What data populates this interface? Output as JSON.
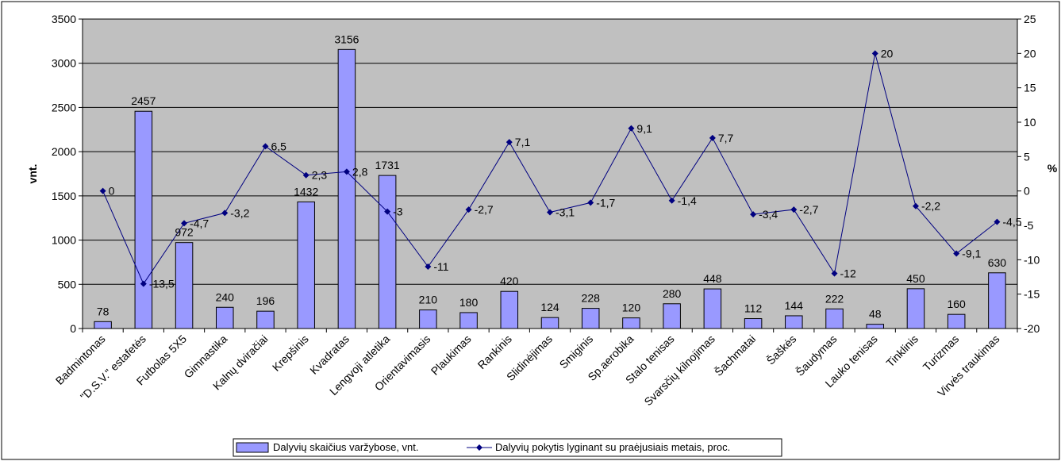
{
  "chart_data": {
    "type": "bar",
    "categories": [
      "Badmintonas",
      "\"D.S.V.\" estafetės",
      "Futbolas 5X5",
      "Gimnastika",
      "Kalnų dviračiai",
      "Krepšinis",
      "Kvadratas",
      "Lengvoji atletika",
      "Orientavimasis",
      "Plaukimas",
      "Rankinis",
      "Slidinėjimas",
      "Smiginis",
      "Sp.aerobika",
      "Stalo tenisas",
      "Svarsčių kilnojimas",
      "Šachmatai",
      "Šaškės",
      "Šaudymas",
      "Lauko tenisas",
      "Tinklinis",
      "Turizmas",
      "Virvės traukimas"
    ],
    "series": [
      {
        "name": "Dalyvių skaičius varžybose, vnt.",
        "type": "bar",
        "axis": "left",
        "color": "#9999ff",
        "values": [
          78,
          2457,
          972,
          240,
          196,
          1432,
          3156,
          1731,
          210,
          180,
          420,
          124,
          228,
          120,
          280,
          448,
          112,
          144,
          222,
          48,
          450,
          160,
          630
        ],
        "labels": [
          "78",
          "2457",
          "972",
          "240",
          "196",
          "1432",
          "3156",
          "1731",
          "210",
          "180",
          "420",
          "124",
          "228",
          "120",
          "280",
          "448",
          "112",
          "144",
          "222",
          "48",
          "450",
          "160",
          "630"
        ]
      },
      {
        "name": "Dalyvių pokytis lyginant su praėjusiais metais, proc.",
        "type": "line",
        "axis": "right",
        "color": "#000080",
        "values": [
          0,
          -13.5,
          -4.7,
          -3.2,
          6.5,
          2.3,
          2.8,
          -3,
          -11,
          -2.7,
          7.1,
          -3.1,
          -1.7,
          9.1,
          -1.4,
          7.7,
          -3.4,
          -2.7,
          -12,
          20,
          -2.2,
          -9.1,
          -4.5
        ],
        "labels": [
          "0",
          "-13,5",
          "-4,7",
          "-3,2",
          "6,5",
          "2,3",
          "2,8",
          "-3",
          "-11",
          "-2,7",
          "7,1",
          "-3,1",
          "-1,7",
          "9,1",
          "-1,4",
          "7,7",
          "-3,4",
          "-2,7",
          "-12",
          "20",
          "-2,2",
          "-9,1",
          "-4,5"
        ]
      }
    ],
    "ylabel": "vnt.",
    "y2label": "%",
    "ylim": [
      0,
      3500
    ],
    "y2lim": [
      -20,
      25
    ],
    "yticks": [
      "0",
      "500",
      "1000",
      "1500",
      "2000",
      "2500",
      "3000",
      "3500"
    ],
    "y2ticks": [
      "-20",
      "-15",
      "-10",
      "-5",
      "0",
      "5",
      "10",
      "15",
      "20",
      "25"
    ],
    "grid": true,
    "plot_background": "#c0c0c0",
    "legend_position": "bottom"
  }
}
